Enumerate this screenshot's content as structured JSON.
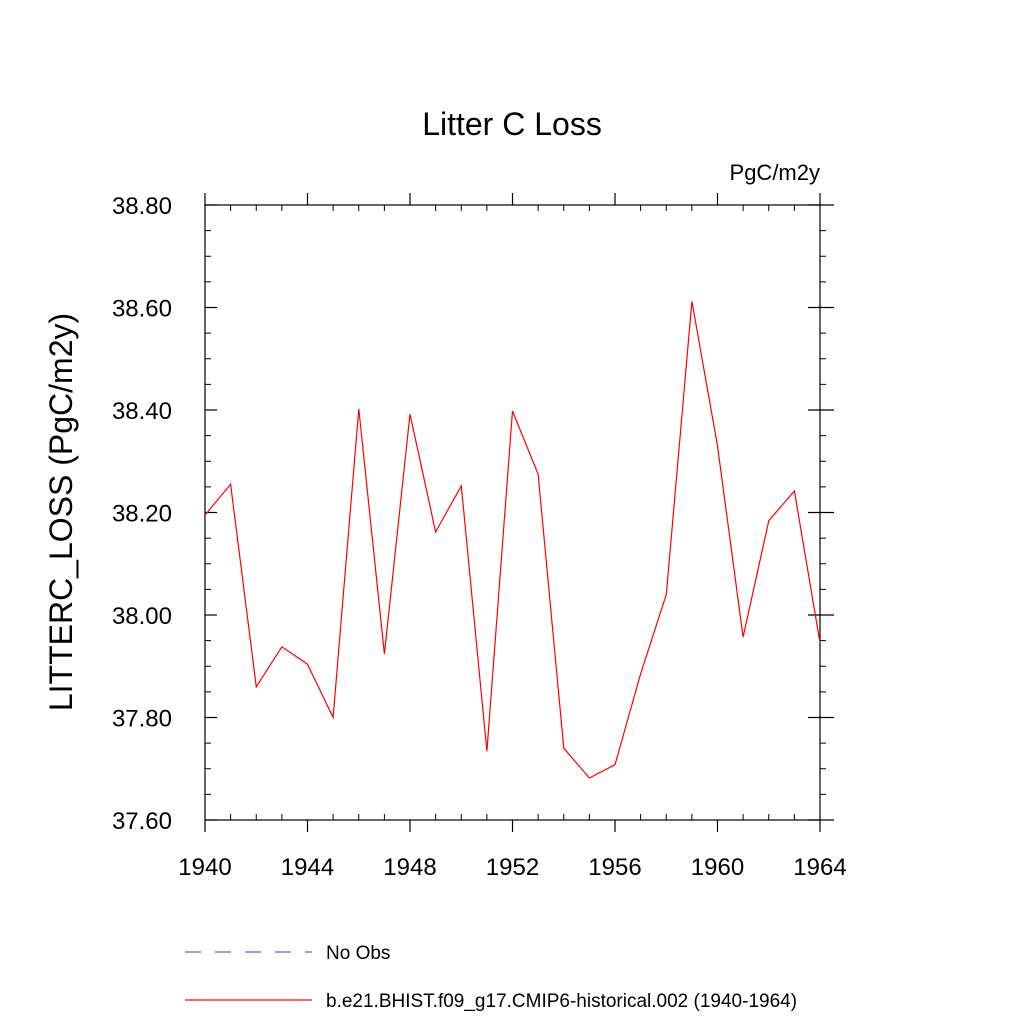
{
  "chart_data": {
    "type": "line",
    "title": "Litter C Loss",
    "units_label": "PgC/m2y",
    "ylabel": "LITTERC_LOSS  (PgC/m2y)",
    "xlabel": "",
    "xlim": [
      1940,
      1964
    ],
    "ylim": [
      37.6,
      38.8
    ],
    "x_ticks": [
      1940,
      1944,
      1948,
      1952,
      1956,
      1960,
      1964
    ],
    "x_tick_labels": [
      "1940",
      "1944",
      "1948",
      "1952",
      "1956",
      "1960",
      "1964"
    ],
    "y_ticks": [
      37.6,
      37.8,
      38.0,
      38.2,
      38.4,
      38.6,
      38.8
    ],
    "y_tick_labels": [
      "37.60",
      "37.80",
      "38.00",
      "38.20",
      "38.40",
      "38.60",
      "38.80"
    ],
    "x_minor_step": 1,
    "y_minor_step": 0.05,
    "grid": false,
    "legend_position": "bottom",
    "x": [
      1940,
      1941,
      1942,
      1943,
      1944,
      1945,
      1946,
      1947,
      1948,
      1949,
      1950,
      1951,
      1952,
      1953,
      1954,
      1955,
      1956,
      1957,
      1958,
      1959,
      1960,
      1961,
      1962,
      1963,
      1964
    ],
    "series": [
      {
        "name": "b.e21.BHIST.f09_g17.CMIP6-historical.002 (1940-1964)",
        "color": "#ff0000",
        "style": "solid",
        "values": [
          38.195,
          38.255,
          37.86,
          37.938,
          37.904,
          37.8,
          38.402,
          37.924,
          38.392,
          38.162,
          38.252,
          37.734,
          38.398,
          38.275,
          37.74,
          37.682,
          37.708,
          37.885,
          38.04,
          38.612,
          38.33,
          37.957,
          38.184,
          38.242,
          37.946
        ]
      }
    ],
    "legend": [
      {
        "label": "No Obs",
        "color": "#6a5acd",
        "style": "dashed"
      },
      {
        "label": "b.e21.BHIST.f09_g17.CMIP6-historical.002 (1940-1964)",
        "color": "#ff0000",
        "style": "solid"
      }
    ]
  }
}
